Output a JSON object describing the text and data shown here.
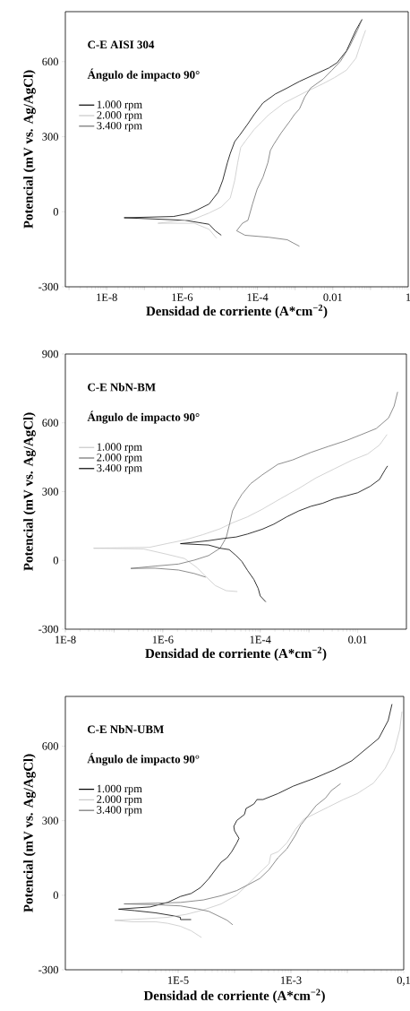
{
  "chart_data": [
    {
      "type": "line",
      "title": "C-E AISI 304",
      "annotations": [
        "Ángulo de impacto 90°"
      ],
      "xlabel": "Densidad de corriente (A*cm$^{−2}$)",
      "ylabel": "Potencial (mV vs. Ag/AgCl)",
      "log": "x",
      "legend": "top left",
      "xlim": [
        8e-10,
        1
      ],
      "ylim": [
        -300,
        800
      ],
      "xticks": [
        {
          "value": 1e-09,
          "label": null
        },
        {
          "value": 1e-08,
          "label": "1E-8"
        },
        {
          "value": 1e-07,
          "label": null
        },
        {
          "value": 1e-06,
          "label": "1E-6"
        },
        {
          "value": 1e-05,
          "label": null
        },
        {
          "value": 0.0001,
          "label": "1E-4"
        },
        {
          "value": 0.001,
          "label": null
        },
        {
          "value": 0.01,
          "label": "0.01"
        },
        {
          "value": 0.1,
          "label": null
        },
        {
          "value": 1,
          "label": "1"
        }
      ],
      "yticks": [
        -300,
        0,
        300,
        600
      ],
      "series": [
        {
          "name": "1.000 rpm",
          "color": "#000000",
          "x": [
            1.1e-05,
            7.6e-06,
            5.2e-06,
            3.6e-06,
            1.2e-06,
            1.9e-07,
            2.9e-08,
            5.9e-07,
            1.5e-06,
            2.5e-06,
            5.2e-06,
            9.1e-06,
            1.2e-05,
            1.6e-05,
            1.9e-05,
            2.5e-05,
            3.3e-05,
            5.6e-05,
            8.1e-05,
            0.00014,
            0.0003,
            0.00062,
            0.0013,
            0.0032,
            0.0079,
            0.013,
            0.023,
            0.041,
            0.059
          ],
          "values": [
            -94,
            -76,
            -50,
            -46,
            -34,
            -29,
            -24,
            -19,
            -7,
            7,
            31,
            78,
            126,
            197,
            233,
            281,
            304,
            352,
            388,
            435,
            471,
            495,
            521,
            548,
            575,
            596,
            643,
            726,
            768
          ]
        },
        {
          "name": "2.000 rpm",
          "color": "#c8c8c8",
          "x": [
            8.3e-06,
            7.6e-06,
            5.2e-06,
            2.1e-06,
            2.3e-07,
            2.1e-06,
            5.2e-06,
            1.1e-05,
            1.9e-05,
            2.5e-05,
            3e-05,
            3.6e-05,
            4.7e-05,
            8.1e-05,
            0.0002,
            0.00051,
            0.0018,
            0.0055,
            0.011,
            0.023,
            0.041,
            0.059,
            0.074
          ],
          "values": [
            -106,
            -100,
            -70,
            -46,
            -46,
            -29,
            -5,
            19,
            55,
            126,
            197,
            257,
            281,
            328,
            388,
            435,
            477,
            512,
            536,
            566,
            614,
            685,
            726
          ]
        },
        {
          "name": "3.400 rpm",
          "color": "#707070",
          "x": [
            0.0013,
            0.00087,
            0.00062,
            0.0002,
            4.7e-05,
            2.8e-05,
            4e-05,
            5.6e-05,
            7.4e-05,
            9.8e-05,
            0.00014,
            0.00019,
            0.00022,
            0.00027,
            0.00043,
            0.00074,
            0.00095,
            0.0013,
            0.0018,
            0.0026,
            0.0055,
            0.0095,
            0.016,
            0.028,
            0.045,
            0.06
          ],
          "values": [
            -138,
            -124,
            -112,
            -102,
            -94,
            -76,
            -46,
            -34,
            31,
            90,
            138,
            197,
            245,
            269,
            316,
            364,
            388,
            411,
            459,
            495,
            530,
            566,
            602,
            661,
            726,
            770
          ]
        }
      ]
    },
    {
      "type": "line",
      "title": "C-E NbN-BM",
      "annotations": [
        "Ángulo de impacto 90°"
      ],
      "xlabel": "Densidad de corriente (A*cm$^{−2}$)",
      "ylabel": "Potencial (mV vs. Ag/AgCl)",
      "log": "x",
      "legend": "top left",
      "xlim": [
        1e-08,
        0.1
      ],
      "ylim": [
        -300,
        900
      ],
      "xticks": [
        {
          "value": 1e-08,
          "label": "1E-8"
        },
        {
          "value": 1e-07,
          "label": null
        },
        {
          "value": 1e-06,
          "label": "1E-6"
        },
        {
          "value": 1e-05,
          "label": null
        },
        {
          "value": 0.0001,
          "label": "1E-4"
        },
        {
          "value": 0.001,
          "label": null
        },
        {
          "value": 0.01,
          "label": "0.01"
        }
      ],
      "yticks": [
        -300,
        0,
        300,
        600,
        900
      ],
      "series": [
        {
          "name": "1.000 rpm",
          "color": "#c8c8c8",
          "x": [
            3.4e-05,
            2e-05,
            1.2e-05,
            7.6e-06,
            5e-06,
            2.8e-06,
            1.2e-06,
            4e-07,
            3.8e-08,
            5.3e-07,
            1.2e-06,
            2.8e-06,
            6.6e-06,
            1.5e-05,
            2.7e-05,
            5.5e-05,
            0.00011,
            0.00026,
            0.00062,
            0.0014,
            0.0033,
            0.0078,
            0.016,
            0.028,
            0.04
          ],
          "values": [
            -136,
            -132,
            -110,
            -70,
            -31,
            8,
            27,
            50,
            53,
            57,
            73,
            89,
            112,
            138,
            164,
            190,
            223,
            269,
            314,
            360,
            399,
            438,
            464,
            503,
            549
          ]
        },
        {
          "name": "2.000 rpm",
          "color": "#707070",
          "x": [
            7.6e-06,
            4.4e-06,
            2.1e-06,
            6.9e-07,
            2.2e-07,
            6.9e-07,
            2.1e-06,
            4.4e-06,
            8.7e-06,
            1.5e-05,
            2e-05,
            2.3e-05,
            2.7e-05,
            3.4e-05,
            4.2e-05,
            6.3e-05,
            0.00011,
            0.00023,
            0.00046,
            0.0011,
            0.0025,
            0.0059,
            0.012,
            0.024,
            0.043,
            0.056,
            0.066
          ],
          "values": [
            -73,
            -57,
            -42,
            -34,
            -35,
            -25,
            -16,
            1,
            21,
            53,
            99,
            151,
            216,
            256,
            288,
            334,
            373,
            419,
            438,
            471,
            497,
            523,
            549,
            575,
            621,
            673,
            735
          ]
        },
        {
          "name": "3.400 rpm",
          "color": "#000000",
          "x": [
            0.00013,
            0.0001,
            9.1e-05,
            7.4e-05,
            5.5e-05,
            4.2e-05,
            3.2e-05,
            2.3e-05,
            1.5e-05,
            8.7e-06,
            2.3e-06,
            8.7e-06,
            1.8e-05,
            3.2e-05,
            5.5e-05,
            0.00011,
            0.00019,
            0.00035,
            0.00062,
            0.0011,
            0.0019,
            0.0033,
            0.0059,
            0.01,
            0.018,
            0.028,
            0.036,
            0.041
          ],
          "values": [
            -181,
            -155,
            -123,
            -83,
            -44,
            -5,
            21,
            47,
            53,
            67,
            73,
            86,
            96,
            102,
            115,
            136,
            158,
            190,
            216,
            236,
            249,
            269,
            282,
            295,
            323,
            353,
            393,
            412
          ]
        }
      ]
    },
    {
      "type": "line",
      "title": "C-E NbN-UBM",
      "annotations": [
        "Ángulo de impacto 90°"
      ],
      "xlabel": "Densidad de corriente (A*cm$^{−2}$)",
      "ylabel": "Potencial (mV vs. Ag/AgCl)",
      "log": "x",
      "legend": "top left",
      "xlim": [
        1e-07,
        0.1
      ],
      "ylim": [
        -300,
        800
      ],
      "xticks": [
        {
          "value": 1e-06,
          "label": null
        },
        {
          "value": 1e-05,
          "label": "1E-5"
        },
        {
          "value": 0.0001,
          "label": null
        },
        {
          "value": 0.001,
          "label": "1E-3"
        },
        {
          "value": 0.01,
          "label": null
        },
        {
          "value": 0.1,
          "label": "0,1"
        }
      ],
      "yticks": [
        -300,
        0,
        300,
        600
      ],
      "series": [
        {
          "name": "1.000 rpm",
          "color": "#000000",
          "x": [
            1.7e-05,
            1.1e-05,
            1.1e-05,
            8.3e-06,
            4e-06,
            1.7e-06,
            8.8e-07,
            3.2e-06,
            6.5e-06,
            1.1e-05,
            1.7e-05,
            2.5e-05,
            3.5e-05,
            4.6e-05,
            5.8e-05,
            7.4e-05,
            8.9e-05,
            0.00011,
            0.00012,
            0.0001,
            9.7e-05,
            0.00011,
            0.00015,
            0.00016,
            0.00022,
            0.00025,
            0.00032,
            0.00059,
            0.0011,
            0.0025,
            0.0059,
            0.012,
            0.02,
            0.036,
            0.053,
            0.062
          ],
          "values": [
            -98,
            -98,
            -89,
            -83,
            -71,
            -62,
            -56,
            -47,
            -29,
            -5,
            7,
            31,
            67,
            103,
            133,
            151,
            175,
            211,
            229,
            259,
            277,
            301,
            325,
            349,
            367,
            385,
            385,
            409,
            439,
            469,
            505,
            541,
            583,
            631,
            703,
            769
          ]
        },
        {
          "name": "2.000 rpm",
          "color": "#c8c8c8",
          "x": [
            2.6e-05,
            1.7e-05,
            1.1e-05,
            6.5e-06,
            4e-06,
            1.5e-06,
            7.5e-07,
            2.5e-06,
            6.5e-06,
            1.4e-05,
            2.8e-05,
            5.8e-05,
            0.00011,
            0.00017,
            0.00028,
            0.00041,
            0.00044,
            0.00059,
            0.00085,
            0.0012,
            0.0017,
            0.0025,
            0.0046,
            0.0085,
            0.015,
            0.029,
            0.047,
            0.068,
            0.085,
            0.093
          ],
          "values": [
            -170,
            -143,
            -125,
            -113,
            -107,
            -107,
            -101,
            -95,
            -89,
            -77,
            -59,
            -35,
            1,
            43,
            91,
            127,
            163,
            175,
            211,
            265,
            307,
            325,
            355,
            385,
            409,
            451,
            511,
            583,
            667,
            739
          ]
        },
        {
          "name": "3.400 rpm",
          "color": "#707070",
          "x": [
            9.3e-05,
            7.4e-05,
            5.8e-05,
            3.5e-05,
            2.2e-05,
            1.1e-05,
            4e-06,
            1.1e-06,
            4e-06,
            1.1e-05,
            2.8e-05,
            5.8e-05,
            0.00011,
            0.00017,
            0.00028,
            0.00041,
            0.00059,
            0.00085,
            0.0012,
            0.0015,
            0.002,
            0.0028,
            0.0041,
            0.0052,
            0.0076
          ],
          "values": [
            -119,
            -101,
            -89,
            -65,
            -55,
            -43,
            -38,
            -35,
            -32,
            -29,
            -19,
            -2,
            19,
            41,
            67,
            103,
            151,
            187,
            241,
            283,
            319,
            361,
            391,
            421,
            449
          ]
        }
      ]
    }
  ]
}
